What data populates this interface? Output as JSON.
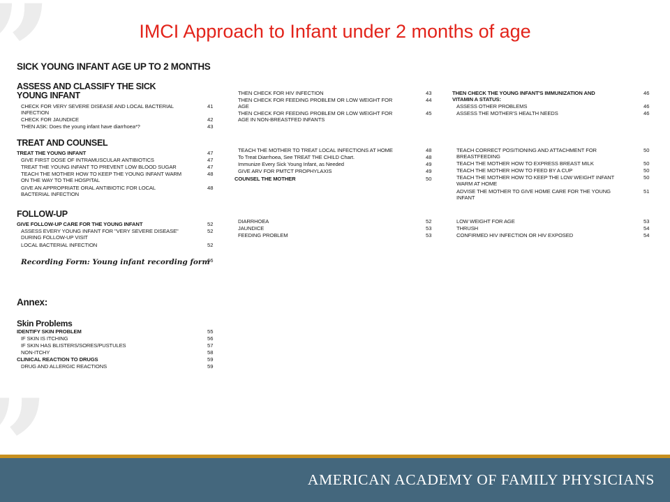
{
  "title": "IMCI Approach to Infant under 2 months of age",
  "main_heading": "SICK YOUNG INFANT AGE UP TO 2 MONTHS",
  "sections": {
    "assess": {
      "heading_line1": "ASSESS AND CLASSIFY THE SICK",
      "heading_line2": "YOUNG INFANT",
      "items": [
        {
          "text": "CHECK FOR VERY SEVERE DISEASE AND LOCAL BACTERIAL",
          "text2": "INFECTION",
          "page": "41"
        },
        {
          "text": "CHECK FOR JAUNDICE",
          "page": "42"
        },
        {
          "text": "THEN ASK: Does the young infant have diarrhoea*?",
          "page": "43"
        }
      ]
    },
    "assess_col2": [
      {
        "text": "THEN CHECK FOR HIV INFECTION",
        "page": "43"
      },
      {
        "text": "THEN CHECK FOR FEEDING PROBLEM OR LOW WEIGHT FOR",
        "text2": "AGE",
        "page": "44"
      },
      {
        "text": "THEN CHECK FOR FEEDING PROBLEM OR LOW WEIGHT FOR",
        "text2": "AGE IN NON-BREASTFED INFANTS",
        "page": "45"
      }
    ],
    "assess_col3": {
      "heading_line1": "THEN CHECK THE YOUNG INFANT'S IMMUNIZATION AND",
      "heading_line2": "VITAMIN A STATUS:",
      "heading_page": "46",
      "items": [
        {
          "text": "ASSESS OTHER PROBLEMS",
          "page": "46"
        },
        {
          "text": "ASSESS THE MOTHER'S HEALTH NEEDS",
          "page": "46"
        }
      ]
    },
    "treat": {
      "heading": "TREAT AND COUNSEL",
      "subheading": "TREAT THE YOUNG INFANT",
      "subheading_page": "47",
      "items": [
        {
          "text": "GIVE FIRST DOSE OF INTRAMUSCULAR ANTIBIOTICS",
          "page": "47"
        },
        {
          "text": "TREAT THE YOUNG INFANT TO PREVENT LOW BLOOD SUGAR",
          "page": "47"
        },
        {
          "text": "TEACH THE MOTHER HOW TO KEEP THE YOUNG INFANT WARM",
          "text2": "ON THE WAY TO THE HOSPITAL",
          "page": "48"
        },
        {
          "text": "GIVE AN APPROPRIATE ORAL ANTIBIOTIC FOR LOCAL",
          "text2": "BACTERIAL INFECTION",
          "page": "48"
        }
      ]
    },
    "treat_col2": {
      "items": [
        {
          "text": "TEACH THE MOTHER TO TREAT LOCAL INFECTIONS AT HOME",
          "page": "48"
        },
        {
          "text": "To Treat Diarrhoea, See TREAT THE CHILD Chart.",
          "page": "48"
        },
        {
          "text": "Immunize Every Sick Young Infant, as Needed",
          "page": "49"
        },
        {
          "text": "GIVE ARV FOR PMTCT PROPHYLAXIS",
          "page": "49"
        }
      ],
      "counsel_heading": "COUNSEL THE MOTHER",
      "counsel_page": "50"
    },
    "treat_col3": [
      {
        "text": "TEACH CORRECT POSITIONING AND ATTACHMENT FOR",
        "text2": "BREASTFEEDING",
        "page": "50"
      },
      {
        "text": "TEACH THE MOTHER HOW TO EXPRESS BREAST MILK",
        "page": "50"
      },
      {
        "text": "TEACH THE MOTHER HOW TO FEED BY A CUP",
        "page": "50"
      },
      {
        "text": "TEACH THE MOTHER HOW TO KEEP THE LOW WEIGHT INFANT",
        "text2": "WARM AT HOME",
        "page": "50"
      },
      {
        "text": "ADVISE THE MOTHER TO GIVE HOME CARE FOR THE YOUNG",
        "text2": "INFANT",
        "page": "51"
      }
    ],
    "followup": {
      "heading": "FOLLOW-UP",
      "subheading": "GIVE FOLLOW-UP CARE FOR THE YOUNG INFANT",
      "subheading_page": "52",
      "items": [
        {
          "text": "ASSESS EVERY YOUNG INFANT FOR \"VERY SEVERE DISEASE\"",
          "text2": "DURING FOLLOW-UP VISIT",
          "page": "52"
        },
        {
          "text": "LOCAL BACTERIAL INFECTION",
          "page": "52"
        }
      ]
    },
    "followup_col2": [
      {
        "text": "DIARRHOEA",
        "page": "52"
      },
      {
        "text": "JAUNDICE",
        "page": "53"
      },
      {
        "text": "FEEDING PROBLEM",
        "page": "53"
      }
    ],
    "followup_col3": [
      {
        "text": "LOW WEIGHT FOR AGE",
        "page": "53"
      },
      {
        "text": "THRUSH",
        "page": "54"
      },
      {
        "text": "CONFIRMED HIV INFECTION OR HIV EXPOSED",
        "page": "54"
      }
    ],
    "recording": {
      "text": "Recording Form: Young infant recording form",
      "page": "66"
    },
    "annex": {
      "heading": "Annex:",
      "skin_heading": "Skin Problems",
      "items": [
        {
          "text": "IDENTIFY SKIN PROBLEM",
          "page": "55",
          "bold": true
        },
        {
          "text": "IF SKIN IS ITCHING",
          "page": "56"
        },
        {
          "text": "IF SKIN HAS BLISTERS/SORES/PUSTULES",
          "page": "57"
        },
        {
          "text": "NON-ITCHY",
          "page": "58"
        },
        {
          "text": "CLINICAL REACTION TO DRUGS",
          "page": "59",
          "bold": true
        },
        {
          "text": "DRUG AND ALLERGIC REACTIONS",
          "page": "59"
        }
      ]
    }
  },
  "footer": {
    "organization": "AMERICAN ACADEMY OF FAMILY PHYSICIANS"
  },
  "colors": {
    "title": "#e2231a",
    "footer_bg": "#44677d",
    "footer_accent": "#c8901f",
    "text": "#1a1a1a"
  }
}
